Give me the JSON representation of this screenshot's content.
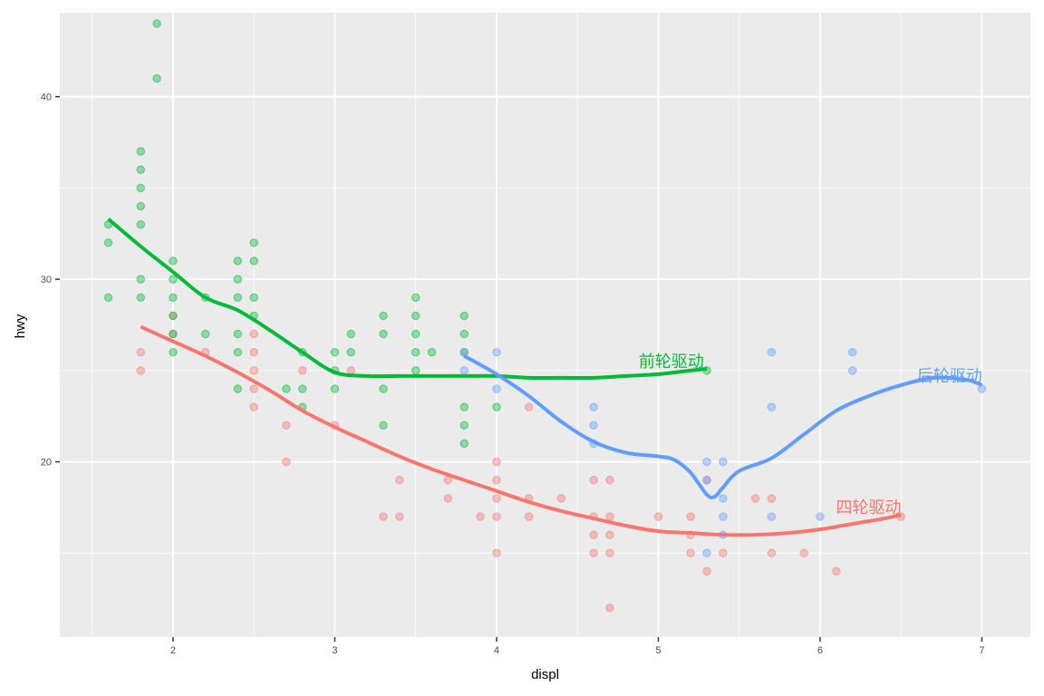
{
  "chart_data": {
    "type": "scatter",
    "xlabel": "displ",
    "ylabel": "hwy",
    "xlim": [
      1.3,
      7.3
    ],
    "ylim": [
      10.4,
      44.6
    ],
    "x_ticks": [
      2,
      3,
      4,
      5,
      6,
      7
    ],
    "y_ticks": [
      20,
      30,
      40
    ],
    "grid": true,
    "legend": "none",
    "series": [
      {
        "name": "四轮驱动",
        "color": "#F8766D",
        "label_at": [
          6.3,
          17.2
        ],
        "points": [
          [
            1.8,
            26
          ],
          [
            1.8,
            25
          ],
          [
            2.0,
            28
          ],
          [
            2.0,
            27
          ],
          [
            2.2,
            26
          ],
          [
            2.5,
            27
          ],
          [
            2.5,
            26
          ],
          [
            2.5,
            25
          ],
          [
            2.5,
            24
          ],
          [
            2.5,
            23
          ],
          [
            2.7,
            22
          ],
          [
            2.7,
            20
          ],
          [
            2.8,
            25
          ],
          [
            3.0,
            22
          ],
          [
            3.1,
            25
          ],
          [
            3.3,
            17
          ],
          [
            3.4,
            19
          ],
          [
            3.4,
            17
          ],
          [
            3.7,
            19
          ],
          [
            3.7,
            18
          ],
          [
            3.9,
            17
          ],
          [
            4.0,
            20
          ],
          [
            4.0,
            19
          ],
          [
            4.0,
            18
          ],
          [
            4.0,
            17
          ],
          [
            4.0,
            15
          ],
          [
            4.2,
            23
          ],
          [
            4.2,
            18
          ],
          [
            4.2,
            17
          ],
          [
            4.4,
            18
          ],
          [
            4.6,
            19
          ],
          [
            4.6,
            17
          ],
          [
            4.6,
            16
          ],
          [
            4.6,
            15
          ],
          [
            4.7,
            19
          ],
          [
            4.7,
            17
          ],
          [
            4.7,
            16
          ],
          [
            4.7,
            15
          ],
          [
            4.7,
            12
          ],
          [
            5.0,
            17
          ],
          [
            5.2,
            17
          ],
          [
            5.2,
            16
          ],
          [
            5.2,
            15
          ],
          [
            5.3,
            19
          ],
          [
            5.3,
            14
          ],
          [
            5.4,
            15
          ],
          [
            5.6,
            18
          ],
          [
            5.7,
            18
          ],
          [
            5.7,
            15
          ],
          [
            5.9,
            15
          ],
          [
            6.1,
            14
          ],
          [
            6.5,
            17
          ]
        ],
        "curve": [
          [
            1.8,
            27.4
          ],
          [
            2.0,
            26.6
          ],
          [
            2.2,
            25.8
          ],
          [
            2.4,
            24.9
          ],
          [
            2.6,
            23.9
          ],
          [
            2.8,
            22.8
          ],
          [
            3.0,
            21.9
          ],
          [
            3.2,
            21.1
          ],
          [
            3.4,
            20.3
          ],
          [
            3.6,
            19.6
          ],
          [
            3.8,
            19.0
          ],
          [
            4.0,
            18.4
          ],
          [
            4.2,
            17.8
          ],
          [
            4.4,
            17.3
          ],
          [
            4.6,
            16.9
          ],
          [
            4.8,
            16.5
          ],
          [
            5.0,
            16.2
          ],
          [
            5.2,
            16.1
          ],
          [
            5.4,
            16.0
          ],
          [
            5.6,
            16.0
          ],
          [
            5.8,
            16.1
          ],
          [
            6.0,
            16.3
          ],
          [
            6.2,
            16.6
          ],
          [
            6.4,
            16.9
          ],
          [
            6.5,
            17.1
          ]
        ]
      },
      {
        "name": "前轮驱动",
        "color": "#00BA38",
        "label_at": [
          5.08,
          25.2
        ],
        "points": [
          [
            1.6,
            33
          ],
          [
            1.6,
            32
          ],
          [
            1.6,
            29
          ],
          [
            1.8,
            37
          ],
          [
            1.8,
            36
          ],
          [
            1.8,
            35
          ],
          [
            1.8,
            34
          ],
          [
            1.8,
            33
          ],
          [
            1.8,
            30
          ],
          [
            1.8,
            29
          ],
          [
            1.9,
            44
          ],
          [
            1.9,
            41
          ],
          [
            2.0,
            31
          ],
          [
            2.0,
            30
          ],
          [
            2.0,
            29
          ],
          [
            2.0,
            28
          ],
          [
            2.0,
            27
          ],
          [
            2.0,
            26
          ],
          [
            2.2,
            29
          ],
          [
            2.2,
            27
          ],
          [
            2.4,
            31
          ],
          [
            2.4,
            30
          ],
          [
            2.4,
            29
          ],
          [
            2.4,
            27
          ],
          [
            2.4,
            26
          ],
          [
            2.4,
            24
          ],
          [
            2.5,
            32
          ],
          [
            2.5,
            31
          ],
          [
            2.5,
            29
          ],
          [
            2.5,
            28
          ],
          [
            2.7,
            24
          ],
          [
            2.8,
            26
          ],
          [
            2.8,
            24
          ],
          [
            2.8,
            23
          ],
          [
            3.0,
            26
          ],
          [
            3.0,
            25
          ],
          [
            3.0,
            24
          ],
          [
            3.1,
            27
          ],
          [
            3.1,
            26
          ],
          [
            3.3,
            28
          ],
          [
            3.3,
            27
          ],
          [
            3.3,
            24
          ],
          [
            3.3,
            22
          ],
          [
            3.5,
            29
          ],
          [
            3.5,
            28
          ],
          [
            3.5,
            27
          ],
          [
            3.5,
            26
          ],
          [
            3.5,
            25
          ],
          [
            3.6,
            26
          ],
          [
            3.8,
            28
          ],
          [
            3.8,
            27
          ],
          [
            3.8,
            26
          ],
          [
            3.8,
            23
          ],
          [
            3.8,
            22
          ],
          [
            3.8,
            21
          ],
          [
            4.0,
            23
          ],
          [
            5.3,
            25
          ]
        ],
        "curve": [
          [
            1.6,
            33.3
          ],
          [
            1.8,
            31.8
          ],
          [
            2.0,
            30.4
          ],
          [
            2.2,
            29.0
          ],
          [
            2.4,
            28.3
          ],
          [
            2.6,
            27.2
          ],
          [
            2.8,
            26.0
          ],
          [
            3.0,
            24.9
          ],
          [
            3.2,
            24.7
          ],
          [
            3.4,
            24.7
          ],
          [
            3.6,
            24.7
          ],
          [
            3.8,
            24.7
          ],
          [
            4.0,
            24.7
          ],
          [
            4.2,
            24.6
          ],
          [
            4.4,
            24.6
          ],
          [
            4.6,
            24.6
          ],
          [
            4.8,
            24.7
          ],
          [
            5.0,
            24.8
          ],
          [
            5.2,
            25.0
          ],
          [
            5.3,
            25.1
          ]
        ]
      },
      {
        "name": "后轮驱动",
        "color": "#619CFF",
        "label_at": [
          6.8,
          24.4
        ],
        "points": [
          [
            3.8,
            26
          ],
          [
            3.8,
            25
          ],
          [
            4.0,
            26
          ],
          [
            4.0,
            24
          ],
          [
            4.6,
            23
          ],
          [
            4.6,
            22
          ],
          [
            4.6,
            21
          ],
          [
            5.3,
            20
          ],
          [
            5.3,
            19
          ],
          [
            5.3,
            15
          ],
          [
            5.4,
            20
          ],
          [
            5.4,
            18
          ],
          [
            5.4,
            17
          ],
          [
            5.4,
            16
          ],
          [
            5.7,
            26
          ],
          [
            5.7,
            23
          ],
          [
            5.7,
            17
          ],
          [
            6.0,
            17
          ],
          [
            6.2,
            26
          ],
          [
            6.2,
            25
          ],
          [
            7.0,
            24
          ]
        ],
        "curve": [
          [
            3.8,
            25.8
          ],
          [
            4.0,
            24.8
          ],
          [
            4.2,
            23.6
          ],
          [
            4.4,
            22.2
          ],
          [
            4.6,
            21.1
          ],
          [
            4.8,
            20.5
          ],
          [
            5.0,
            20.3
          ],
          [
            5.1,
            20.1
          ],
          [
            5.2,
            19.4
          ],
          [
            5.3,
            18.2
          ],
          [
            5.35,
            18.1
          ],
          [
            5.4,
            18.6
          ],
          [
            5.5,
            19.5
          ],
          [
            5.7,
            20.2
          ],
          [
            5.9,
            21.5
          ],
          [
            6.1,
            22.8
          ],
          [
            6.3,
            23.6
          ],
          [
            6.5,
            24.2
          ],
          [
            6.7,
            24.6
          ],
          [
            6.9,
            24.5
          ],
          [
            7.0,
            24.2
          ]
        ]
      }
    ]
  }
}
